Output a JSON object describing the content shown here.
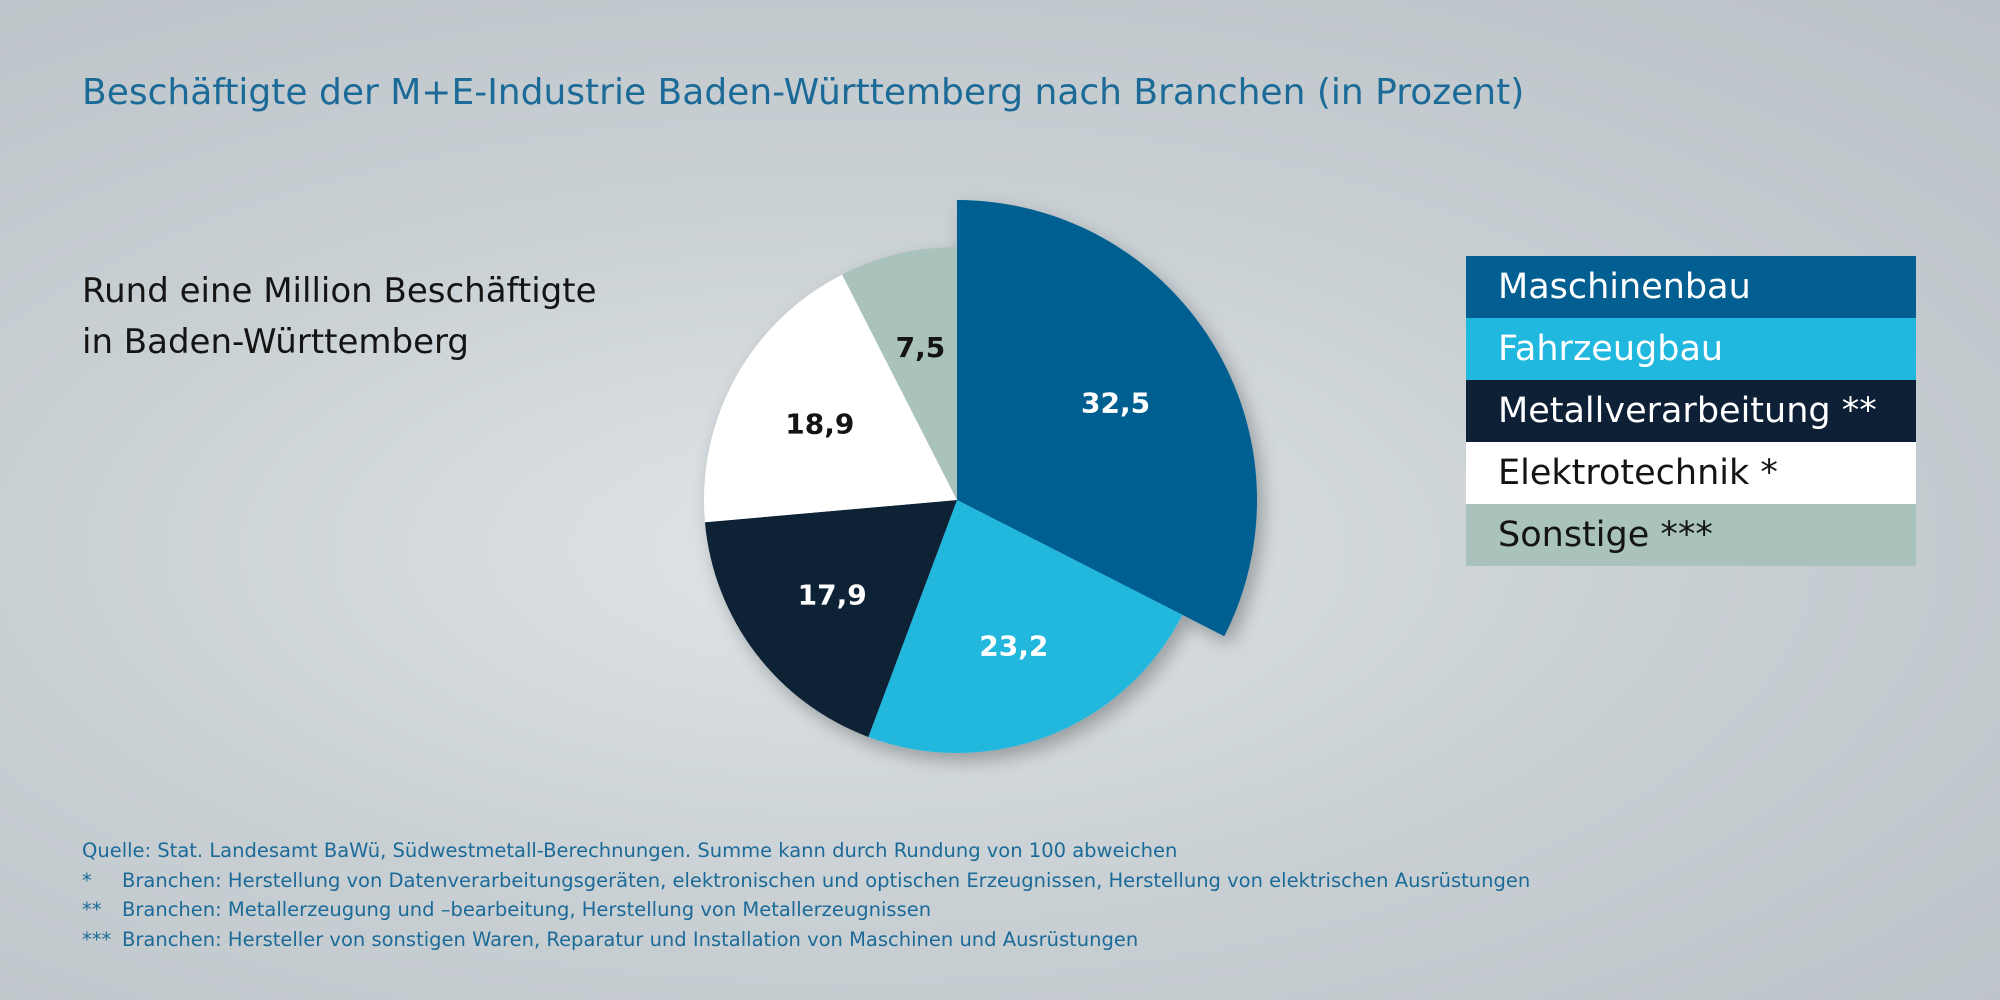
{
  "title": "Beschäftigte der M+E-Industrie Baden-Württemberg nach Branchen (in Prozent)",
  "subtitle": [
    "Rund eine Million Beschäftigte",
    "in Baden-Württemberg"
  ],
  "colors": {
    "title_text": "#1b6a98",
    "Maschinenbau": "#035f91",
    "Fahrzeugbau": "#20b8de",
    "Metallverarbeitung": "#0e2035",
    "Elektrotechnik": "#ffffff",
    "Sonstige": "#a9c2bb"
  },
  "legend": [
    {
      "label": "Maschinenbau",
      "color": "#035f91",
      "text_color": "#ffffff"
    },
    {
      "label": "Fahrzeugbau",
      "color": "#20b8de",
      "text_color": "#ffffff"
    },
    {
      "label": "Metallverarbeitung **",
      "color": "#0e2035",
      "text_color": "#ffffff"
    },
    {
      "label": "Elektrotechnik *",
      "color": "#ffffff",
      "text_color": "#141414"
    },
    {
      "label": "Sonstige ***",
      "color": "#a9c2bb",
      "text_color": "#141414"
    }
  ],
  "chart_data": {
    "type": "pie",
    "title": "Beschäftigte der M+E-Industrie Baden-Württemberg nach Branchen (in Prozent)",
    "unit": "Prozent",
    "start": "12 o'clock, clockwise",
    "highlighted": "Maschinenbau",
    "slices": [
      {
        "label": "Maschinenbau",
        "value": 32.5,
        "display": "32,5",
        "color": "#035f91",
        "label_color": "#ffffff"
      },
      {
        "label": "Fahrzeugbau",
        "value": 23.2,
        "display": "23,2",
        "color": "#20b8de",
        "label_color": "#ffffff"
      },
      {
        "label": "Metallverarbeitung",
        "value": 17.9,
        "display": "17,9",
        "color": "#0e2035",
        "label_color": "#ffffff"
      },
      {
        "label": "Elektrotechnik",
        "value": 18.9,
        "display": "18,9",
        "color": "#ffffff",
        "label_color": "#141414"
      },
      {
        "label": "Sonstige",
        "value": 7.5,
        "display": "7,5",
        "color": "#a9c2bb",
        "label_color": "#141414"
      }
    ]
  },
  "footnotes": [
    {
      "mark": "",
      "text": "Quelle: Stat. Landesamt BaWü, Südwestmetall-Berechnungen. Summe kann durch Rundung von 100 abweichen"
    },
    {
      "mark": "*",
      "text": "Branchen: Herstellung von Datenverarbeitungsgeräten, elektronischen und optischen Erzeugnissen, Herstellung von elektrischen Ausrüstungen"
    },
    {
      "mark": "**",
      "text": "Branchen: Metallerzeugung und –bearbeitung, Herstellung von Metallerzeugnissen"
    },
    {
      "mark": "***",
      "text": "Branchen: Hersteller von sonstigen Waren, Reparatur und Installation von Maschinen und Ausrüstungen"
    }
  ]
}
